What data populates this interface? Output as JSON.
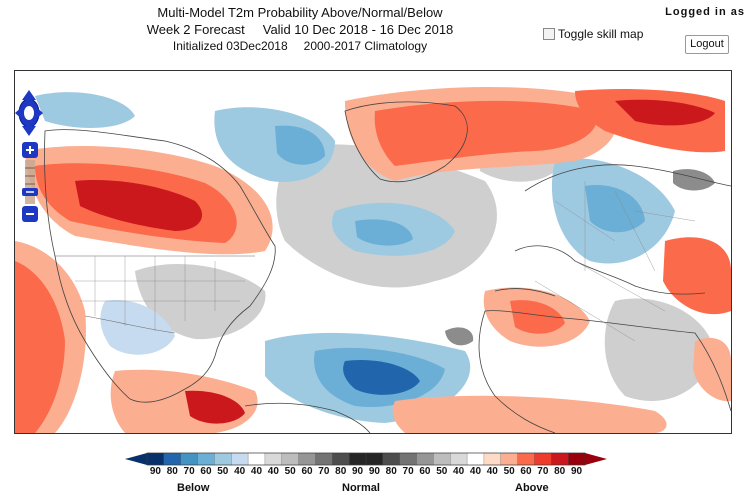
{
  "header": {
    "title": "Multi-Model T2m Probability Above/Normal/Below",
    "forecast": "Week 2 Forecast",
    "valid": "Valid 10 Dec 2018 - 16 Dec 2018",
    "initialized": "Initialized 03Dec2018",
    "climatology": "2000-2017 Climatology"
  },
  "user": {
    "logged_in_text": "Logged in as",
    "logout_label": "Logout"
  },
  "controls": {
    "toggle_skill_label": "Toggle skill map"
  },
  "legend": {
    "numbers": [
      "90",
      "80",
      "70",
      "60",
      "50",
      "40",
      "40",
      "40",
      "50",
      "60",
      "70",
      "80",
      "90",
      "90",
      "80",
      "70",
      "60",
      "50",
      "40",
      "40",
      "40",
      "50",
      "60",
      "70",
      "80",
      "90"
    ],
    "colors": [
      "#08306b",
      "#2166ac",
      "#4393c3",
      "#6baed6",
      "#9ecae1",
      "#c6dbef",
      "#ffffff",
      "#d9d9d9",
      "#bdbdbd",
      "#969696",
      "#737373",
      "#4d4d4d",
      "#252525",
      "#252525",
      "#4d4d4d",
      "#737373",
      "#969696",
      "#bdbdbd",
      "#d9d9d9",
      "#ffffff",
      "#fddbc7",
      "#fcae91",
      "#fb6a4a",
      "#ef3b2c",
      "#cb181d",
      "#99000d"
    ],
    "below_label": "Below",
    "normal_label": "Normal",
    "above_label": "Above"
  },
  "colors": {
    "above_strong": "#cb181d",
    "above_mid": "#fb6a4a",
    "above_light": "#fcae91",
    "below_strong": "#2166ac",
    "below_mid": "#6baed6",
    "below_light": "#c6dbef",
    "normal": "#cfcfcf",
    "normal_dark": "#8c8c8c"
  }
}
